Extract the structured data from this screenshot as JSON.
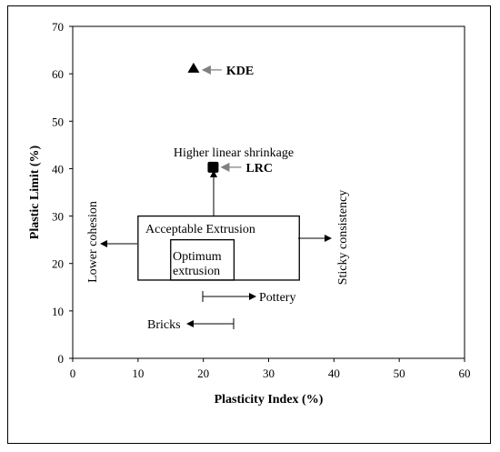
{
  "chart_data": {
    "type": "scatter",
    "xlabel": "Plasticity Index (%)",
    "ylabel": "Plastic Limit (%)",
    "xlim": [
      0,
      60
    ],
    "ylim": [
      0,
      70
    ],
    "x_ticks": [
      0,
      10,
      20,
      30,
      40,
      50,
      60
    ],
    "y_ticks": [
      0,
      10,
      20,
      30,
      40,
      50,
      60,
      70
    ],
    "grid": false,
    "points": [
      {
        "name": "KDE",
        "x": 18.5,
        "y": 61.2,
        "marker": "triangle"
      },
      {
        "name": "LRC",
        "x": 21.5,
        "y": 40.3,
        "marker": "square"
      }
    ],
    "regions": [
      {
        "label": "Acceptable Extrusion",
        "x0": 10,
        "x1": 34.7,
        "y0": 16.5,
        "y1": 30
      },
      {
        "label": "Optimum extrusion",
        "x0": 15,
        "x1": 24.7,
        "y0": 16.5,
        "y1": 25
      }
    ],
    "annotations": {
      "higher_linear_shrinkage": "Higher linear shrinkage",
      "lower_cohesion": "Lower cohesion",
      "sticky_consistency": "Sticky consistency",
      "pottery": "Pottery",
      "bricks": "Bricks"
    },
    "arrow_color_points": "#808080",
    "line_color": "#000000"
  }
}
